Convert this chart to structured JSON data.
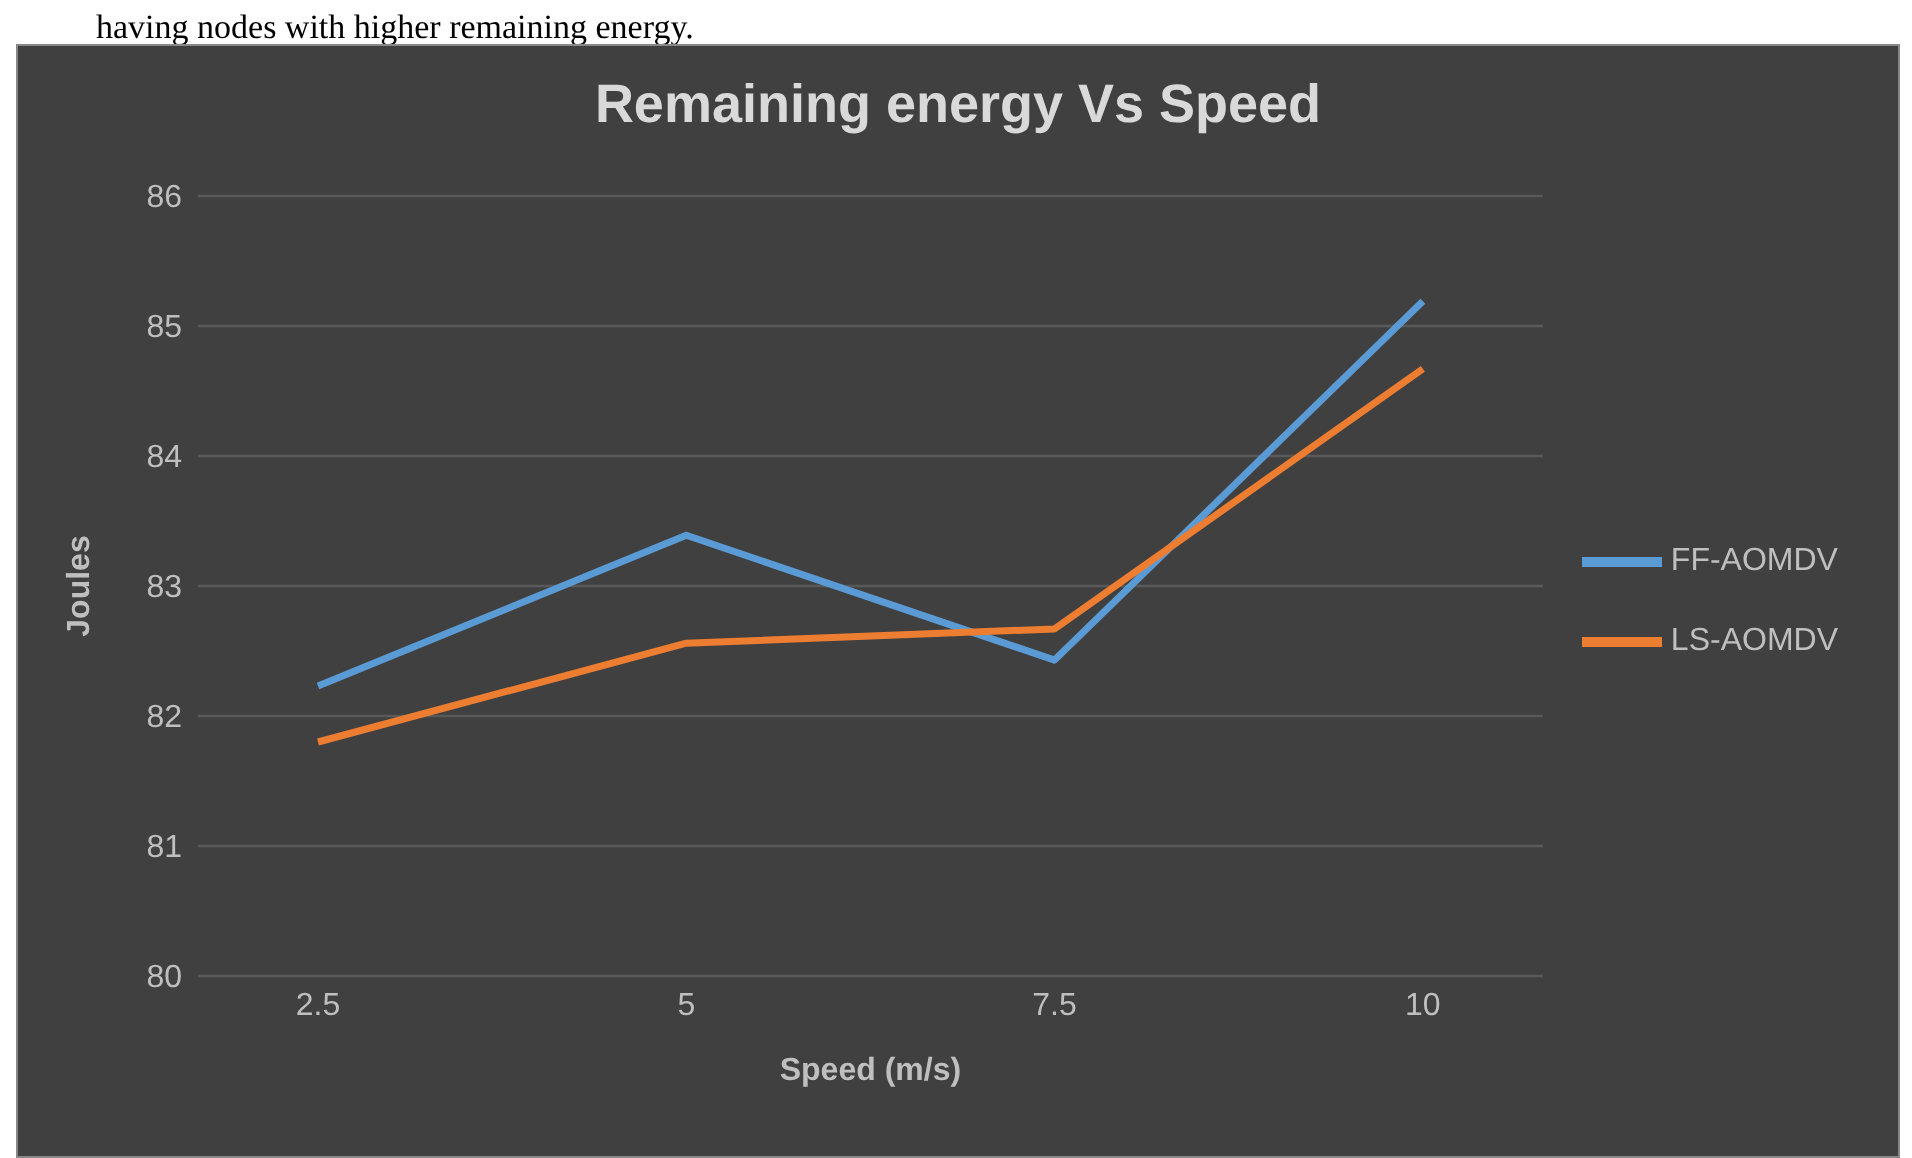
{
  "chart_data": {
    "type": "line",
    "title": "Remaining energy Vs Speed",
    "xlabel": "Speed (m/s)",
    "ylabel": "Joules",
    "annotations": [
      "having nodes with higher remaining energy."
    ],
    "categories": [
      "2.5",
      "5",
      "7.5",
      "10"
    ],
    "series": [
      {
        "name": "FF-AOMDV",
        "color": "#5b9bd5",
        "values": [
          82.23,
          83.39,
          82.43,
          85.19
        ]
      },
      {
        "name": "LS-AOMDV",
        "color": "#ed7d31",
        "values": [
          81.8,
          82.56,
          82.67,
          84.67
        ]
      }
    ],
    "ylim": [
      80,
      86
    ],
    "yticks": [
      80,
      81,
      82,
      83,
      84,
      85,
      86
    ],
    "grid": "y",
    "legend": "right",
    "marker": "none",
    "line_style": "solid"
  }
}
